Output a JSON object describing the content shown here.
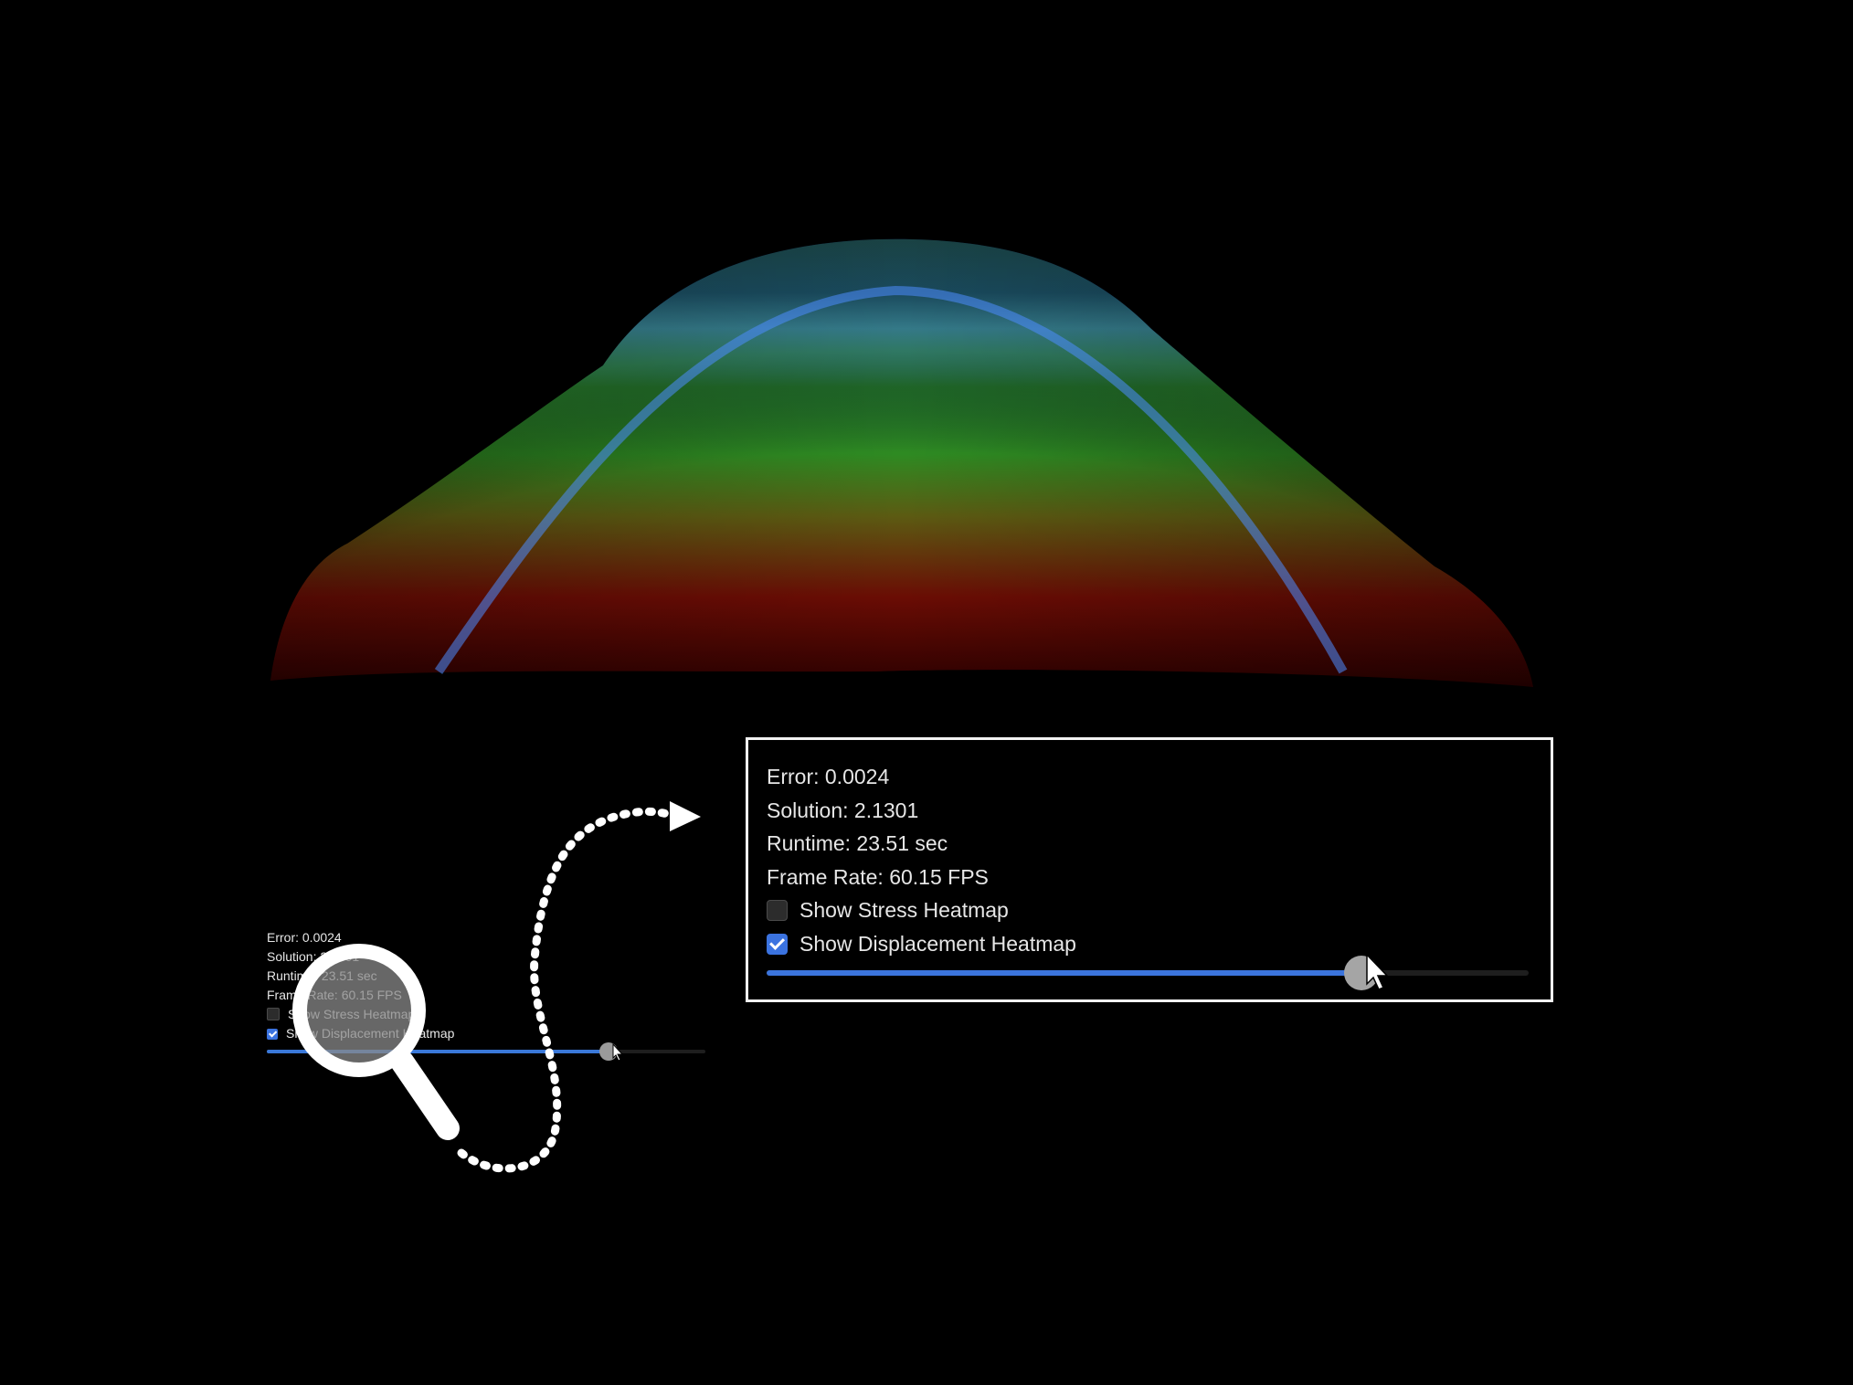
{
  "panel": {
    "error": "Error: 0.0024",
    "solution": "Solution: 2.1301",
    "runtime": "Runtime: 23.51 sec",
    "frame_rate": "Frame Rate: 60.15 FPS",
    "stress_label": "Show Stress Heatmap",
    "stress_checked": false,
    "displacement_label": "Show Displacement Heatmap",
    "displacement_checked": true,
    "slider_value_fraction": 0.78
  },
  "colors": {
    "background": "#000000",
    "accent_blue": "#3b74dc",
    "slider_thumb": "#a5a5a5",
    "zoom_frame": "#f2f2f2",
    "heatmap_low": "#0000a0",
    "heatmap_mid": "#2f8a2a",
    "heatmap_high": "#7a0a00"
  },
  "icons": {
    "magnifier": "magnifying-glass-icon",
    "arrow": "dotted-arrow-icon",
    "cursor": "mouse-pointer-icon"
  }
}
